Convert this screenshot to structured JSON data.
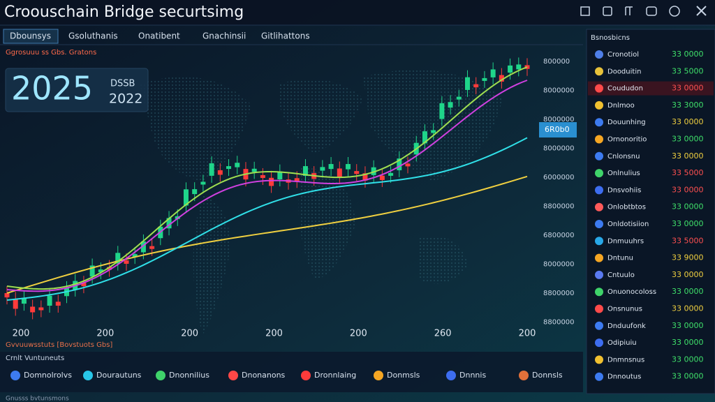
{
  "header": {
    "title": "Croouschain Bridge securtsimg",
    "tabs": [
      "Dbounsys",
      "Gsoluthanis",
      "Onatibent",
      "Gnachinsii",
      "Gitlihattons"
    ]
  },
  "overlay": {
    "subtitle": "Ggrosuuu ss Gbs. Gratons",
    "year_main": "2025",
    "year_label": "DSSB",
    "year_sub": "2022"
  },
  "chart": {
    "y_labels": [
      "800000",
      "8000000",
      "8000000",
      "8000000",
      "6000000",
      "8800000",
      "6800000",
      "8000000",
      "8800000",
      "8800000"
    ],
    "price_tag": "6R0b0",
    "x_labels": [
      "200",
      "200",
      "200",
      "200",
      "200",
      "260",
      "200"
    ],
    "legend": "Gvvuuwsstuts [Bovstuots Gbs]"
  },
  "bottom": {
    "heading": "Crnlt Vuntuneuts",
    "buttons": [
      {
        "label": "Domnolrolvs",
        "color": "#3d7bf0"
      },
      {
        "label": "Dourautuns",
        "color": "#28c6e8"
      },
      {
        "label": "Dnonnilius",
        "color": "#3fd36a"
      },
      {
        "label": "Dnonanons",
        "color": "#ff4747"
      },
      {
        "label": "Dronnlaing",
        "color": "#ff3b3b"
      },
      {
        "label": "Donmsls",
        "color": "#f5a623"
      },
      {
        "label": "Dnnnis",
        "color": "#3d6df0"
      },
      {
        "label": "Donnsls",
        "color": "#e0703a"
      }
    ],
    "footer": "Gnusss bvtunsmons"
  },
  "side_panel": {
    "title": "Bsnosbicns",
    "rows": [
      {
        "name": "Cronotiol",
        "value": "33 0000",
        "icon_color": "#4f7fe8",
        "value_color": "#3fe06a"
      },
      {
        "name": "Dooduitin",
        "value": "33 5000",
        "icon_color": "#e8c23a",
        "value_color": "#3fe06a"
      },
      {
        "name": "Coududon",
        "value": "33 0000",
        "icon_color": "#ff4a4a",
        "value_color": "#ff5050"
      },
      {
        "name": "Dnlmoo",
        "value": "33 3000",
        "icon_color": "#f0c030",
        "value_color": "#3fe06a"
      },
      {
        "name": "Douunhing",
        "value": "33 0000",
        "icon_color": "#3d7bf0",
        "value_color": "#f0d040"
      },
      {
        "name": "Ornonoritio",
        "value": "33 0000",
        "icon_color": "#f5a623",
        "value_color": "#3fe06a"
      },
      {
        "name": "Cnlonsnu",
        "value": "33 0000",
        "icon_color": "#3d7bf0",
        "value_color": "#f0d040"
      },
      {
        "name": "Onlnulius",
        "value": "33 5000",
        "icon_color": "#3fd36a",
        "value_color": "#ff5050"
      },
      {
        "name": "Dnsvohiis",
        "value": "33 0000",
        "icon_color": "#3d6df0",
        "value_color": "#ff5050"
      },
      {
        "name": "Onlobtbtos",
        "value": "33 0000",
        "icon_color": "#ff5a5a",
        "value_color": "#3fe06a"
      },
      {
        "name": "Onldotisiion",
        "value": "33 0000",
        "icon_color": "#3d7bf0",
        "value_color": "#3fe06a"
      },
      {
        "name": "Dnmuuhrs",
        "value": "33 5000",
        "icon_color": "#28a8e8",
        "value_color": "#ff5050"
      },
      {
        "name": "Dntunu",
        "value": "33 9000",
        "icon_color": "#f5a623",
        "value_color": "#f0d040"
      },
      {
        "name": "Cntuulo",
        "value": "33 0000",
        "icon_color": "#5a7af0",
        "value_color": "#f0d040"
      },
      {
        "name": "Onuonocoloss",
        "value": "33 0000",
        "icon_color": "#3fd36a",
        "value_color": "#3fe06a"
      },
      {
        "name": "Onsnunus",
        "value": "33 0000",
        "icon_color": "#ff4a4a",
        "value_color": "#f0d040"
      },
      {
        "name": "Dnduufonk",
        "value": "33 0000",
        "icon_color": "#3d7bf0",
        "value_color": "#3fe06a"
      },
      {
        "name": "Odipiuiu",
        "value": "33 0000",
        "icon_color": "#3d6df0",
        "value_color": "#3fe06a"
      },
      {
        "name": "Dnmnsnus",
        "value": "33 0000",
        "icon_color": "#f0c030",
        "value_color": "#3fe06a"
      },
      {
        "name": "Dnnoutus",
        "value": "33 0000",
        "icon_color": "#3d7bf0",
        "value_color": "#3fe06a"
      }
    ]
  }
}
